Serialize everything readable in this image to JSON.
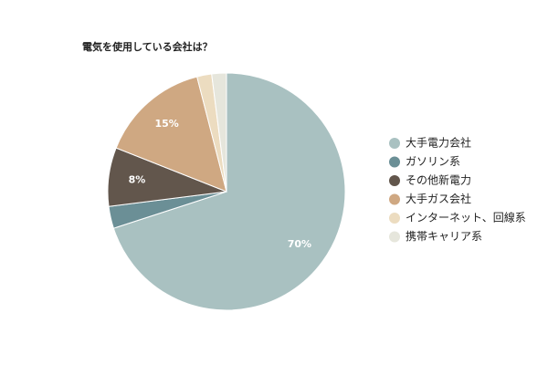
{
  "chart_data": {
    "type": "pie",
    "title": "電気を使用している会社は？",
    "categories": [
      "大手電力会社",
      "ガソリン系",
      "その他新電力",
      "大手ガス会社",
      "インターネット、回線系",
      "携帯キャリア系"
    ],
    "values": [
      70,
      3,
      8,
      15,
      2,
      2
    ],
    "value_labels": [
      "70%",
      null,
      "8%",
      "15%",
      null,
      null
    ],
    "colors": [
      "#a9c1c1",
      "#6b8f96",
      "#62564c",
      "#cfa882",
      "#ecdcc0",
      "#e6e6dc"
    ],
    "legend": "right"
  }
}
